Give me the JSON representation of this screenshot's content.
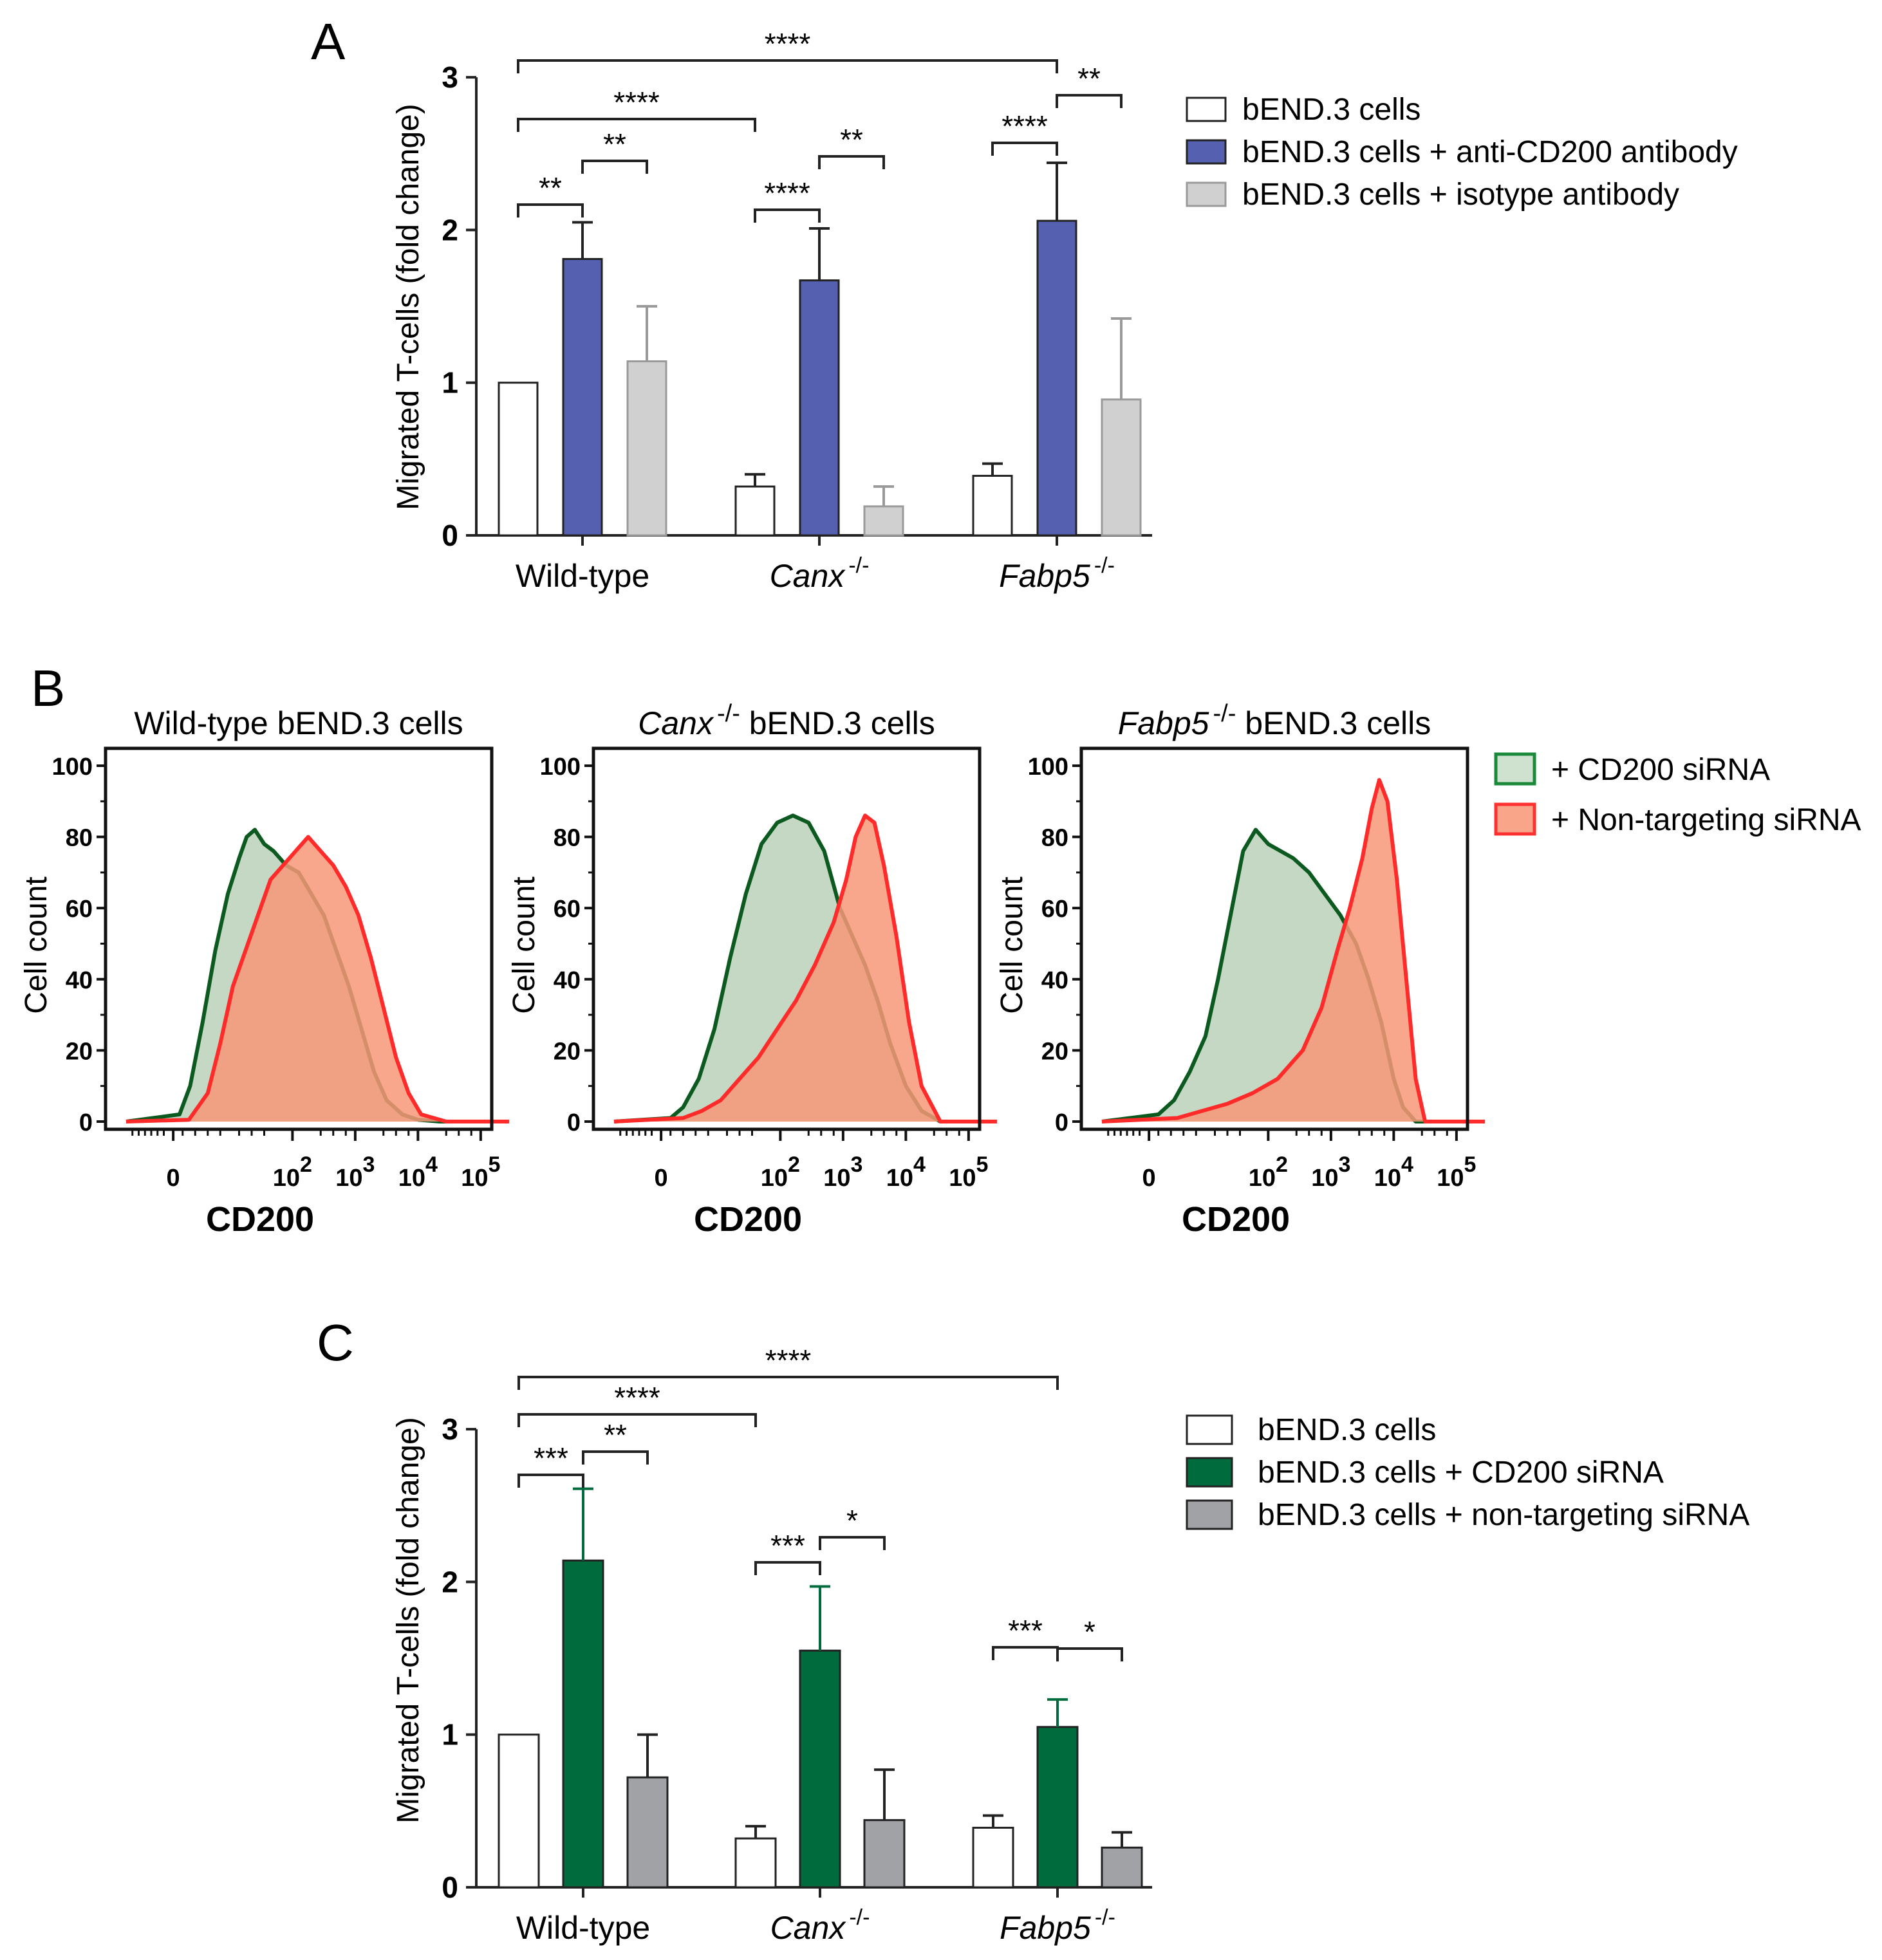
{
  "colors": {
    "white_fill": "#ffffff",
    "anti_cd200": "#5660b0",
    "isotype": "#d0d0d0",
    "isotype_err": "#9a9a9a",
    "cd200_sirna": "#006b3c",
    "non_targeting": "#a0a2a5",
    "hist_green_line": "#0c5a1f",
    "hist_green_fill": "#c4d8c4",
    "hist_red_line": "#ff2a2a",
    "hist_red_fill": "#f89878",
    "hist_overlap": "#e8825c",
    "legend_green_border": "#1a8a3a",
    "legend_green_fill": "#cfe2cf",
    "legend_red_border": "#ff3030",
    "legend_red_fill": "#f8a58a"
  },
  "chart_data": [
    {
      "panel": "A",
      "type": "bar",
      "ylabel": "Migrated T-cells (fold change)",
      "ylim": [
        0,
        3
      ],
      "yticks": [
        "0",
        "1",
        "2",
        "3"
      ],
      "categories": [
        {
          "text": "Wild-type",
          "sup": ""
        },
        {
          "text": "Canx",
          "sup": "-/-"
        },
        {
          "text": "Fabp5",
          "sup": "-/-"
        }
      ],
      "series": [
        {
          "name": "bEND.3 cells",
          "values": [
            1.0,
            0.32,
            0.39
          ],
          "errors": [
            0,
            0.08,
            0.08
          ]
        },
        {
          "name": "bEND.3 cells + anti-CD200 antibody",
          "values": [
            1.81,
            1.67,
            2.06
          ],
          "errors": [
            0.24,
            0.34,
            0.38
          ]
        },
        {
          "name": "bEND.3 cells + isotype antibody",
          "values": [
            1.14,
            0.19,
            0.89
          ],
          "errors": [
            0.36,
            0.13,
            0.53
          ]
        }
      ],
      "significance": [
        {
          "label": "****",
          "from": [
            0,
            0
          ],
          "to": [
            2,
            1
          ]
        },
        {
          "label": "****",
          "from": [
            0,
            0
          ],
          "to": [
            1,
            0
          ]
        },
        {
          "label": "**",
          "from": [
            0,
            0
          ],
          "to": [
            0,
            1
          ]
        },
        {
          "label": "**",
          "from": [
            0,
            1
          ],
          "to": [
            0,
            2
          ]
        },
        {
          "label": "****",
          "from": [
            1,
            0
          ],
          "to": [
            1,
            1
          ]
        },
        {
          "label": "**",
          "from": [
            1,
            1
          ],
          "to": [
            1,
            2
          ]
        },
        {
          "label": "****",
          "from": [
            2,
            0
          ],
          "to": [
            2,
            1
          ]
        },
        {
          "label": "**",
          "from": [
            2,
            1
          ],
          "to": [
            2,
            2
          ]
        }
      ]
    },
    {
      "panel": "B",
      "type": "histogram",
      "xlabel": "CD200",
      "ylabel": "Cell count",
      "ylim": [
        0,
        100
      ],
      "yticks": [
        "0",
        "20",
        "40",
        "60",
        "80",
        "100"
      ],
      "xticks": [
        {
          "base": "0",
          "exp": ""
        },
        {
          "base": "10",
          "exp": "2"
        },
        {
          "base": "10",
          "exp": "3"
        },
        {
          "base": "10",
          "exp": "4"
        },
        {
          "base": "10",
          "exp": "5"
        }
      ],
      "legend": [
        "+ CD200 siRNA",
        "+ Non-targeting siRNA"
      ],
      "plots": [
        {
          "title_italic": "Wild-type",
          "title_sup": "",
          "title_rest": " bEND.3 cells",
          "cd200_sirna": {
            "x": [
              -0.8,
              0.05,
              0.22,
              0.42,
              0.62,
              0.82,
              1.0,
              1.12,
              1.25,
              1.4,
              1.55,
              1.75,
              1.95,
              2.15,
              2.35,
              2.55,
              2.75,
              2.95,
              3.15,
              3.35,
              3.6,
              3.85,
              4.2,
              5.3
            ],
            "y": [
              0,
              2,
              10,
              28,
              48,
              64,
              74,
              80,
              82,
              78,
              76,
              72,
              70,
              64,
              58,
              48,
              38,
              26,
              14,
              6,
              2,
              0.5,
              0,
              0
            ]
          },
          "non_targeting": {
            "x": [
              -0.8,
              0.2,
              0.5,
              0.7,
              0.9,
              1.1,
              1.3,
              1.5,
              1.7,
              1.9,
              2.1,
              2.3,
              2.5,
              2.7,
              2.9,
              3.1,
              3.3,
              3.5,
              3.7,
              3.9,
              4.3,
              5.3
            ],
            "y": [
              0,
              0.5,
              8,
              22,
              38,
              48,
              58,
              68,
              72,
              76,
              80,
              76,
              72,
              66,
              58,
              46,
              32,
              18,
              8,
              2,
              0,
              0
            ]
          }
        },
        {
          "title_italic": "Canx",
          "title_sup": "-/-",
          "title_rest": " bEND.3 cells",
          "cd200_sirna": {
            "x": [
              -0.8,
              0.1,
              0.3,
              0.55,
              0.8,
              1.05,
              1.3,
              1.55,
              1.8,
              2.05,
              2.3,
              2.55,
              2.8,
              3.0,
              3.2,
              3.4,
              3.6,
              3.85,
              4.1,
              4.4,
              5.3
            ],
            "y": [
              0,
              1,
              4,
              12,
              26,
              46,
              64,
              78,
              84,
              86,
              84,
              76,
              60,
              52,
              44,
              34,
              22,
              10,
              3,
              0,
              0
            ]
          },
          "non_targeting": {
            "x": [
              -0.8,
              0.3,
              0.6,
              0.9,
              1.2,
              1.5,
              1.8,
              2.1,
              2.4,
              2.7,
              2.9,
              3.05,
              3.2,
              3.35,
              3.5,
              3.7,
              3.9,
              4.1,
              4.4,
              5.3
            ],
            "y": [
              0,
              1,
              3,
              6,
              12,
              18,
              26,
              34,
              44,
              56,
              68,
              80,
              86,
              84,
              72,
              52,
              28,
              10,
              0,
              0
            ]
          }
        },
        {
          "title_italic": "Fabp5",
          "title_sup": "-/-",
          "title_rest": " bEND.3 cells",
          "cd200_sirna": {
            "x": [
              -0.8,
              0.1,
              0.35,
              0.6,
              0.85,
              1.05,
              1.25,
              1.45,
              1.65,
              1.85,
              2.05,
              2.25,
              2.5,
              2.75,
              3.0,
              3.25,
              3.45,
              3.65,
              3.85,
              4.0,
              4.2,
              5.3
            ],
            "y": [
              0,
              2,
              6,
              14,
              24,
              40,
              58,
              76,
              82,
              78,
              76,
              74,
              70,
              64,
              58,
              50,
              40,
              28,
              12,
              4,
              0,
              0
            ]
          },
          "non_targeting": {
            "x": [
              -0.8,
              0.4,
              0.8,
              1.2,
              1.6,
              2.0,
              2.4,
              2.7,
              2.95,
              3.15,
              3.35,
              3.5,
              3.62,
              3.75,
              3.9,
              4.05,
              4.2,
              4.35,
              5.3
            ],
            "y": [
              0,
              1,
              3,
              5,
              8,
              12,
              20,
              32,
              48,
              60,
              74,
              88,
              96,
              90,
              68,
              40,
              12,
              0,
              0
            ]
          }
        }
      ]
    },
    {
      "panel": "C",
      "type": "bar",
      "ylabel": "Migrated T-cells (fold change)",
      "ylim": [
        0,
        3
      ],
      "yticks": [
        "0",
        "1",
        "2",
        "3"
      ],
      "categories": [
        {
          "text": "Wild-type",
          "sup": ""
        },
        {
          "text": "Canx",
          "sup": "-/-"
        },
        {
          "text": "Fabp5",
          "sup": "-/-"
        }
      ],
      "series": [
        {
          "name": "bEND.3 cells",
          "values": [
            1.0,
            0.32,
            0.39
          ],
          "errors": [
            0,
            0.08,
            0.08
          ]
        },
        {
          "name": "bEND.3 cells + CD200 siRNA",
          "values": [
            2.14,
            1.55,
            1.05
          ],
          "errors": [
            0.47,
            0.42,
            0.18
          ]
        },
        {
          "name": "bEND.3 cells + non-targeting siRNA",
          "values": [
            0.72,
            0.44,
            0.26
          ],
          "errors": [
            0.28,
            0.33,
            0.1
          ]
        }
      ],
      "significance": [
        {
          "label": "****",
          "from": [
            0,
            0
          ],
          "to": [
            2,
            1
          ]
        },
        {
          "label": "****",
          "from": [
            0,
            0
          ],
          "to": [
            1,
            0
          ]
        },
        {
          "label": "***",
          "from": [
            0,
            0
          ],
          "to": [
            0,
            1
          ]
        },
        {
          "label": "**",
          "from": [
            0,
            1
          ],
          "to": [
            0,
            2
          ]
        },
        {
          "label": "***",
          "from": [
            1,
            0
          ],
          "to": [
            1,
            1
          ]
        },
        {
          "label": "*",
          "from": [
            1,
            1
          ],
          "to": [
            1,
            2
          ]
        },
        {
          "label": "***",
          "from": [
            2,
            0
          ],
          "to": [
            2,
            1
          ]
        },
        {
          "label": "*",
          "from": [
            2,
            1
          ],
          "to": [
            2,
            2
          ]
        }
      ]
    }
  ],
  "panel_labels": [
    "A",
    "B",
    "C"
  ]
}
